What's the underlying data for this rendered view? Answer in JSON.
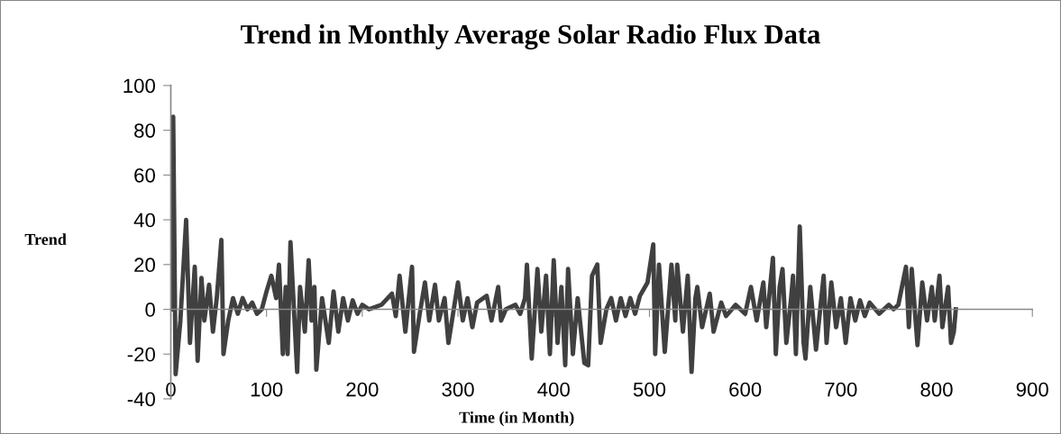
{
  "chart_data": {
    "type": "line",
    "title": "Trend in Monthly Average Solar Radio Flux Data",
    "xlabel": "Time (in Month)",
    "ylabel": "Trend",
    "xlim": [
      0,
      900
    ],
    "xticks": [
      0,
      100,
      200,
      300,
      400,
      500,
      600,
      700,
      800,
      900
    ],
    "ylim": [
      -40,
      100
    ],
    "yticks": [
      -40,
      -20,
      0,
      20,
      40,
      60,
      80,
      100
    ],
    "marker": "none",
    "line_style": "solid",
    "series": [
      {
        "color": "#404040",
        "x": [
          0,
          2.5,
          5,
          10,
          16,
          20,
          25,
          28,
          32,
          35,
          40,
          44,
          48,
          52.8,
          55,
          60,
          65,
          70,
          75,
          80,
          85,
          90,
          95,
          100,
          105,
          110,
          113,
          117,
          120,
          122,
          125,
          128,
          132,
          135,
          140,
          144,
          147,
          150,
          152,
          158,
          165,
          170,
          175,
          180,
          185,
          190,
          195,
          200,
          207,
          220,
          231,
          235,
          239,
          245,
          252,
          254,
          260,
          265.5,
          270,
          276,
          280,
          286,
          290,
          300,
          305,
          310,
          315,
          320,
          330,
          335,
          342,
          345,
          350,
          360,
          365,
          370,
          372,
          377,
          383,
          387,
          392,
          396,
          400,
          404,
          408,
          412,
          415,
          420,
          425,
          432,
          436,
          440,
          445.5,
          449,
          455,
          460,
          465,
          470,
          475,
          480,
          485,
          490,
          498,
          504,
          506,
          510,
          516,
          523,
          527,
          529,
          535,
          540,
          544,
          548,
          550,
          555,
          563,
          567,
          575,
          580,
          590,
          600,
          606,
          612,
          619,
          622,
          629,
          632,
          636,
          639,
          643,
          648,
          650,
          653,
          657,
          661,
          663,
          668,
          674,
          682,
          685,
          690,
          695,
          700,
          705,
          710,
          715,
          720,
          725,
          730,
          740,
          745,
          750,
          755,
          760,
          768,
          771,
          774,
          780,
          785,
          790,
          795,
          798,
          803,
          806,
          812,
          815,
          818,
          820
        ],
        "values": [
          0,
          86,
          -29,
          -5,
          40,
          -15,
          19,
          -23,
          14,
          -5,
          11,
          -10,
          5,
          31,
          -20,
          -5,
          5,
          -2,
          5,
          0,
          3,
          -2,
          0,
          8,
          15,
          5,
          20,
          -20,
          10,
          -20,
          30,
          5,
          -28,
          10,
          -10,
          22,
          -5,
          10,
          -27,
          5,
          -15,
          8,
          -10,
          5,
          -5,
          4,
          -2,
          2,
          0,
          2,
          7,
          -3,
          15,
          -10,
          19,
          -19,
          -2,
          12,
          -5,
          11,
          -5,
          5,
          -15,
          12,
          -5,
          5,
          -8,
          3,
          6,
          -5,
          10,
          -5,
          0,
          2,
          -2,
          5,
          20,
          -22,
          18,
          -10,
          15,
          -20,
          22,
          -15,
          10,
          -25,
          18,
          -20,
          5,
          -24,
          -25,
          15,
          20,
          -15,
          0,
          5,
          -5,
          5,
          -3,
          5,
          -2,
          6,
          12,
          29,
          -20,
          20,
          -19,
          20,
          -5,
          20,
          -10,
          15,
          -28,
          5,
          10,
          -8,
          7,
          -10,
          3,
          -3,
          2,
          -2,
          10,
          -5,
          12,
          -8,
          23,
          -20,
          10,
          18,
          -15,
          5,
          15,
          -20,
          37,
          -15,
          -22,
          10,
          -18,
          15,
          -15,
          12,
          -8,
          5,
          -15,
          5,
          -5,
          4,
          -3,
          3,
          -2,
          0,
          2,
          0,
          2,
          19,
          -8,
          18,
          -16,
          12,
          -5,
          10,
          -5,
          15,
          -8,
          10,
          -15,
          -10,
          0
        ]
      }
    ]
  }
}
